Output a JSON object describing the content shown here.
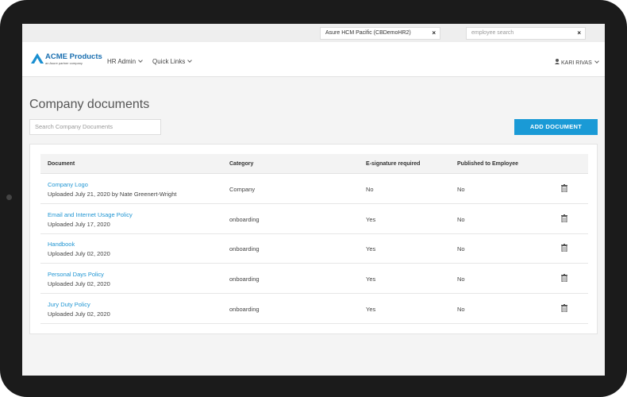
{
  "topbar": {
    "company_selector": "Asure HCM Pacific (CBDemoHR2)",
    "employee_search_placeholder": "employee search"
  },
  "nav": {
    "logo": "ACME Products",
    "logo_tagline": "an Asure partner company",
    "items": [
      "HR Admin",
      "Quick Links"
    ],
    "user": "KARI RIVAS"
  },
  "page": {
    "title": "Company documents",
    "search_placeholder": "Search Company Documents",
    "add_button": "ADD DOCUMENT"
  },
  "table": {
    "headers": [
      "Document",
      "Category",
      "E-signature required",
      "Published to Employee"
    ],
    "rows": [
      {
        "document": "Company Logo",
        "uploaded": "Uploaded July 21, 2020 by Nate Greenert-Wright",
        "category": "Company",
        "esignature": "No",
        "published": "No"
      },
      {
        "document": "Email and Internet Usage Policy",
        "uploaded": "Uploaded July 17, 2020",
        "category": "onboarding",
        "esignature": "Yes",
        "published": "No"
      },
      {
        "document": "Handbook",
        "uploaded": "Uploaded July 02, 2020",
        "category": "onboarding",
        "esignature": "Yes",
        "published": "No"
      },
      {
        "document": "Personal Days Policy",
        "uploaded": "Uploaded July 02, 2020",
        "category": "onboarding",
        "esignature": "Yes",
        "published": "No"
      },
      {
        "document": "Jury Duty Policy",
        "uploaded": "Uploaded July 02, 2020",
        "category": "onboarding",
        "esignature": "Yes",
        "published": "No"
      }
    ]
  }
}
